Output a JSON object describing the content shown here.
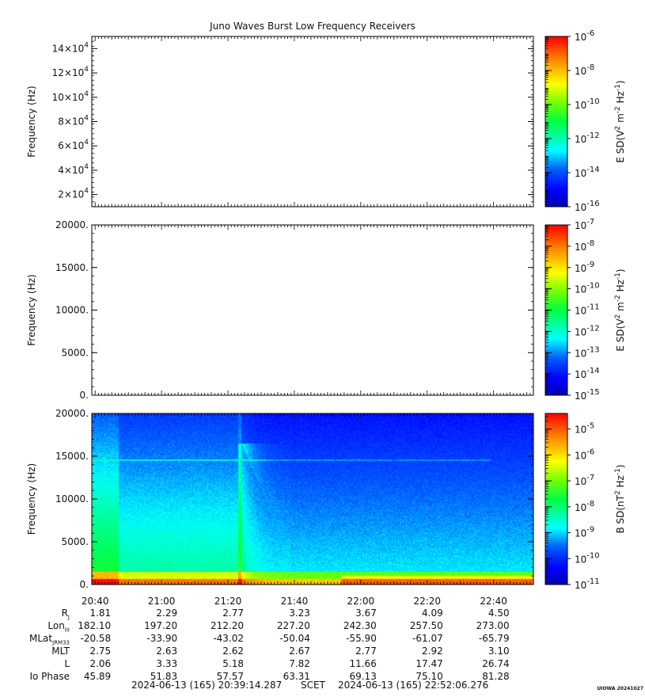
{
  "chart_data": [
    {
      "type": "heatmap",
      "title": "Juno Waves Burst Low Frequency Receivers",
      "ylabel": "Frequency (Hz)",
      "ylim": [
        10000,
        150000
      ],
      "y_ticks": [
        {
          "value": 20000,
          "mant": "2",
          "exp": "4"
        },
        {
          "value": 40000,
          "mant": "4",
          "exp": "4"
        },
        {
          "value": 60000,
          "mant": "6",
          "exp": "4"
        },
        {
          "value": 80000,
          "mant": "8",
          "exp": "4"
        },
        {
          "value": 100000,
          "mant": "10",
          "exp": "4"
        },
        {
          "value": 120000,
          "mant": "12",
          "exp": "4"
        },
        {
          "value": 140000,
          "mant": "14",
          "exp": "4"
        }
      ],
      "colorbar": {
        "label_main": "E SD(V",
        "label_sup1": "2",
        "label_mid": " m",
        "label_sup2": "-2",
        "label_mid2": " Hz",
        "label_sup3": "-1",
        "label_end": ")",
        "log_range": [
          -16,
          -6
        ],
        "ticks": [
          {
            "exp": "-6",
            "value": -6
          },
          {
            "exp": "-8",
            "value": -8
          },
          {
            "exp": "-10",
            "value": -10
          },
          {
            "exp": "-12",
            "value": -12
          },
          {
            "exp": "-14",
            "value": -14
          },
          {
            "exp": "-16",
            "value": -16
          }
        ],
        "base": "10"
      },
      "data": "empty"
    },
    {
      "type": "heatmap",
      "ylabel": "Frequency (Hz)",
      "ylim": [
        0,
        20000
      ],
      "y_ticks": [
        {
          "value": 0,
          "label": "0."
        },
        {
          "value": 5000,
          "label": "5000."
        },
        {
          "value": 10000,
          "label": "10000."
        },
        {
          "value": 15000,
          "label": "15000."
        },
        {
          "value": 20000,
          "label": "20000."
        }
      ],
      "colorbar": {
        "label_main": "E SD(V",
        "label_sup1": "2",
        "label_mid": " m",
        "label_sup2": "-2",
        "label_mid2": " Hz",
        "label_sup3": "-1",
        "label_end": ")",
        "log_range": [
          -15,
          -7
        ],
        "ticks": [
          {
            "exp": "-7",
            "value": -7
          },
          {
            "exp": "-8",
            "value": -8
          },
          {
            "exp": "-9",
            "value": -9
          },
          {
            "exp": "-10",
            "value": -10
          },
          {
            "exp": "-11",
            "value": -11
          },
          {
            "exp": "-12",
            "value": -12
          },
          {
            "exp": "-13",
            "value": -13
          },
          {
            "exp": "-14",
            "value": -14
          },
          {
            "exp": "-15",
            "value": -15
          }
        ],
        "base": "10"
      },
      "data": "empty"
    },
    {
      "type": "heatmap",
      "ylabel": "Frequency (Hz)",
      "ylim": [
        0,
        20000
      ],
      "y_ticks": [
        {
          "value": 0,
          "label": "0."
        },
        {
          "value": 5000,
          "label": "5000."
        },
        {
          "value": 10000,
          "label": "10000."
        },
        {
          "value": 15000,
          "label": "15000."
        },
        {
          "value": 20000,
          "label": "20000."
        }
      ],
      "colorbar": {
        "label_main": "B SD(nT",
        "label_sup1": "2",
        "label_mid": " Hz",
        "label_sup2": "-1",
        "label_end": ")",
        "log_range": [
          -11,
          -4.4
        ],
        "ticks": [
          {
            "exp": "-5",
            "value": -5
          },
          {
            "exp": "-6",
            "value": -6
          },
          {
            "exp": "-7",
            "value": -7
          },
          {
            "exp": "-8",
            "value": -8
          },
          {
            "exp": "-9",
            "value": -9
          },
          {
            "exp": "-10",
            "value": -10
          },
          {
            "exp": "-11",
            "value": -11
          }
        ],
        "base": "10"
      },
      "features": {
        "background_log_level": -10.2,
        "broadband_low_freq_band_hz": [
          0,
          1500
        ],
        "broadband_before_2125_hz_top": 20000,
        "burst_time": "21:25",
        "burst_peak_hz": 16500,
        "tone_line_hz": 14600
      }
    }
  ],
  "time_axis": {
    "start_minutes": 0,
    "end_minutes": 133,
    "tick_labels": [
      "20:40",
      "21:00",
      "21:20",
      "21:40",
      "22:00",
      "22:20",
      "22:40"
    ],
    "tick_minutes": [
      1,
      21,
      41,
      61,
      81,
      101,
      121
    ]
  },
  "ephemeris": {
    "rows": [
      {
        "label": "R",
        "sub": "J",
        "values": [
          "1.81",
          "2.29",
          "2.77",
          "3.23",
          "3.67",
          "4.09",
          "4.50"
        ]
      },
      {
        "label": "Lon",
        "sub": "III",
        "values": [
          "182.10",
          "197.20",
          "212.20",
          "227.20",
          "242.30",
          "257.50",
          "273.00"
        ]
      },
      {
        "label": "MLat",
        "sub": "JRM33",
        "values": [
          "-20.58",
          "-33.90",
          "-43.02",
          "-50.04",
          "-55.90",
          "-61.07",
          "-65.79"
        ]
      },
      {
        "label": "MLT",
        "sub": "",
        "values": [
          "2.75",
          "2.63",
          "2.62",
          "2.67",
          "2.77",
          "2.92",
          "3.10"
        ]
      },
      {
        "label": "L",
        "sub": "",
        "values": [
          "2.06",
          "3.33",
          "5.18",
          "7.82",
          "11.66",
          "17.47",
          "26.74"
        ]
      },
      {
        "label": "Io Phase",
        "sub": "",
        "values": [
          "45.89",
          "51.83",
          "57.57",
          "63.31",
          "69.13",
          "75.10",
          "81.28"
        ]
      }
    ]
  },
  "footer": {
    "start": "2024-06-13 (165) 20:39:14.287",
    "mid": "SCET",
    "end": "2024-06-13 (165) 22:52:06.276",
    "credit": "UIOWA 20241027"
  }
}
